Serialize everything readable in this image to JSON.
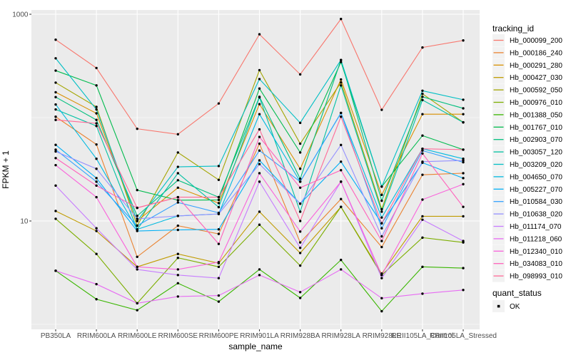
{
  "figure": {
    "background": "#FFFFFF",
    "panel_background": "#EBEBEB",
    "grid_color": "#FFFFFF",
    "tick_color": "#333333",
    "axis_text_color": "#4D4D4D",
    "y_axis": {
      "title": "FPKM + 1",
      "scale": "log10",
      "tick_labels": [
        "1000",
        "10"
      ],
      "tick_values": [
        1000,
        10
      ],
      "minor_values": [
        100,
        1
      ]
    },
    "x_axis": {
      "title": "sample_name"
    },
    "legends": [
      {
        "title": "tracking_id",
        "type": "line-keys"
      },
      {
        "title": "quant_status",
        "type": "point-key",
        "items": [
          {
            "label": "OK",
            "color": "#000000"
          }
        ]
      }
    ]
  },
  "chart_data": {
    "type": "line",
    "title": "",
    "xlabel": "sample_name",
    "ylabel": "FPKM + 1",
    "yscale": "log10",
    "ylim": [
      1,
      1100
    ],
    "grid": true,
    "legend_position": "right",
    "point_color": "#000000",
    "x": [
      "PB350LA",
      "RRIM600LA",
      "RRIM600LE",
      "RRIM600SE",
      "RRIM600PE",
      "RRIM901LA",
      "RRIM928BA",
      "RRIM928LA",
      "RRIM928LE",
      "RRII105LA_Control",
      "RRII105LA_Stressed"
    ],
    "series": [
      {
        "name": "Hb_000099_200",
        "color": "#F8766D",
        "values": [
          567,
          302,
          78,
          69,
          137,
          640,
          262,
          900,
          119,
          477,
          558
        ]
      },
      {
        "name": "Hb_000186_240",
        "color": "#EA8331",
        "values": [
          102,
          55,
          4.5,
          9,
          7.5,
          56,
          6.2,
          16.3,
          5.6,
          28,
          29
        ]
      },
      {
        "name": "Hb_000291_280",
        "color": "#D89000",
        "values": [
          176,
          110,
          10,
          21,
          14.9,
          135,
          32,
          234,
          17.9,
          108,
          108
        ]
      },
      {
        "name": "Hb_000427_030",
        "color": "#C09B00",
        "values": [
          12.5,
          8,
          3.6,
          4.8,
          3.9,
          12.3,
          4.9,
          13.7,
          3.1,
          11.1,
          11.1
        ]
      },
      {
        "name": "Hb_000592_050",
        "color": "#A3A500",
        "values": [
          218,
          127,
          9,
          46,
          25,
          288,
          56,
          219,
          13,
          170,
          90
        ]
      },
      {
        "name": "Hb_000976_010",
        "color": "#7CAE00",
        "values": [
          10.5,
          4.8,
          1.6,
          4.4,
          3.6,
          9.2,
          3.7,
          13.7,
          3.0,
          6.9,
          6.2
        ]
      },
      {
        "name": "Hb_001388_050",
        "color": "#39B600",
        "values": [
          3.3,
          1.75,
          1.37,
          2.5,
          1.66,
          3.4,
          1.8,
          4.2,
          1.34,
          3.6,
          3.5
        ]
      },
      {
        "name": "Hb_001767_010",
        "color": "#00BB4E",
        "values": [
          285,
          205,
          19.9,
          15.9,
          16,
          191,
          46,
          345,
          21.5,
          67,
          49
        ]
      },
      {
        "name": "Hb_002903_070",
        "color": "#00BF7D",
        "values": [
          158,
          95,
          11.2,
          24.8,
          17,
          159,
          25.6,
          361,
          15.7,
          159,
          123
        ]
      },
      {
        "name": "Hb_003057_120",
        "color": "#00C1A3",
        "values": [
          120,
          83,
          8.3,
          29,
          13.6,
          157,
          12.3,
          205,
          12.3,
          148,
          90
        ]
      },
      {
        "name": "Hb_003209_020",
        "color": "#00BFC4",
        "values": [
          375,
          120,
          10,
          33.4,
          34,
          236,
          89,
          361,
          21.5,
          182,
          149
        ]
      },
      {
        "name": "Hb_004650_070",
        "color": "#00BAE0",
        "values": [
          134,
          40,
          8.3,
          11.2,
          11.7,
          108,
          24,
          111,
          10.8,
          50,
          40
        ]
      },
      {
        "name": "Hb_005227_070",
        "color": "#00B0F6",
        "values": [
          54.5,
          26,
          8,
          8.2,
          8.3,
          38.6,
          14.7,
          37.5,
          9.5,
          36.6,
          26
        ]
      },
      {
        "name": "Hb_010584_030",
        "color": "#35A2FF",
        "values": [
          49,
          24,
          9,
          15.1,
          12,
          48,
          24,
          111,
          8.5,
          48,
          37
        ]
      },
      {
        "name": "Hb_010638_020",
        "color": "#9590FF",
        "values": [
          47,
          32,
          10.5,
          11.2,
          11.7,
          35.5,
          14.7,
          54.4,
          7.1,
          37.5,
          38.5
        ]
      },
      {
        "name": "Hb_011174_070",
        "color": "#C77CFF",
        "values": [
          22,
          8.5,
          3.4,
          3,
          2.8,
          24,
          5.5,
          24,
          2.8,
          10.3,
          6.4
        ]
      },
      {
        "name": "Hb_011218_060",
        "color": "#E76BF3",
        "values": [
          3.3,
          2.45,
          1.6,
          1.86,
          1.9,
          3,
          2.05,
          3.4,
          1.79,
          1.98,
          2.15
        ]
      },
      {
        "name": "Hb_012340_010",
        "color": "#FA62DB",
        "values": [
          34.7,
          17,
          3.6,
          3.4,
          4,
          29,
          7.9,
          24,
          3,
          16.1,
          22.7
        ]
      },
      {
        "name": "Hb_034083_010",
        "color": "#FF62BC",
        "values": [
          40.6,
          22,
          13.4,
          17,
          6,
          65,
          21,
          31,
          6.4,
          45,
          13.7
        ]
      },
      {
        "name": "Hb_098993_010",
        "color": "#FF6A98",
        "values": [
          95,
          88,
          13.4,
          17,
          17,
          77,
          10,
          102,
          9.5,
          50,
          49
        ]
      }
    ]
  }
}
